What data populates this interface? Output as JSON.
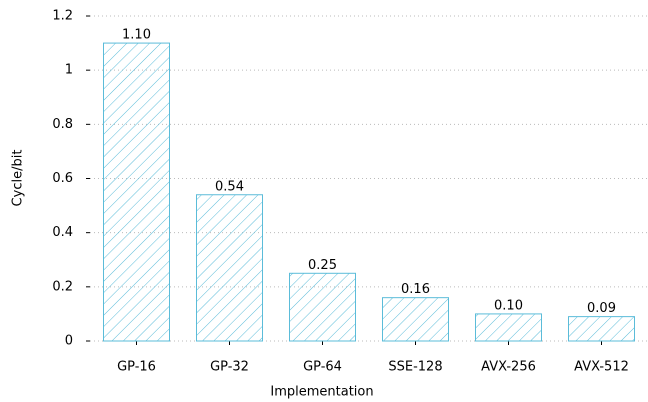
{
  "chart_data": {
    "type": "bar",
    "x_label": "Implementation",
    "y_label": "Cycle/bit",
    "categories": [
      "GP-16",
      "GP-32",
      "GP-64",
      "SSE-128",
      "AVX-256",
      "AVX-512"
    ],
    "values": [
      1.1,
      0.54,
      0.25,
      0.16,
      0.1,
      0.09
    ],
    "value_labels": [
      "1.10",
      "0.54",
      "0.25",
      "0.16",
      "0.10",
      "0.09"
    ],
    "color": "#5bbcd9",
    "ylim": [
      0,
      1.2
    ],
    "yticks": [
      0,
      0.2,
      0.4,
      0.6,
      0.8,
      1,
      1.2
    ],
    "grid": true
  }
}
